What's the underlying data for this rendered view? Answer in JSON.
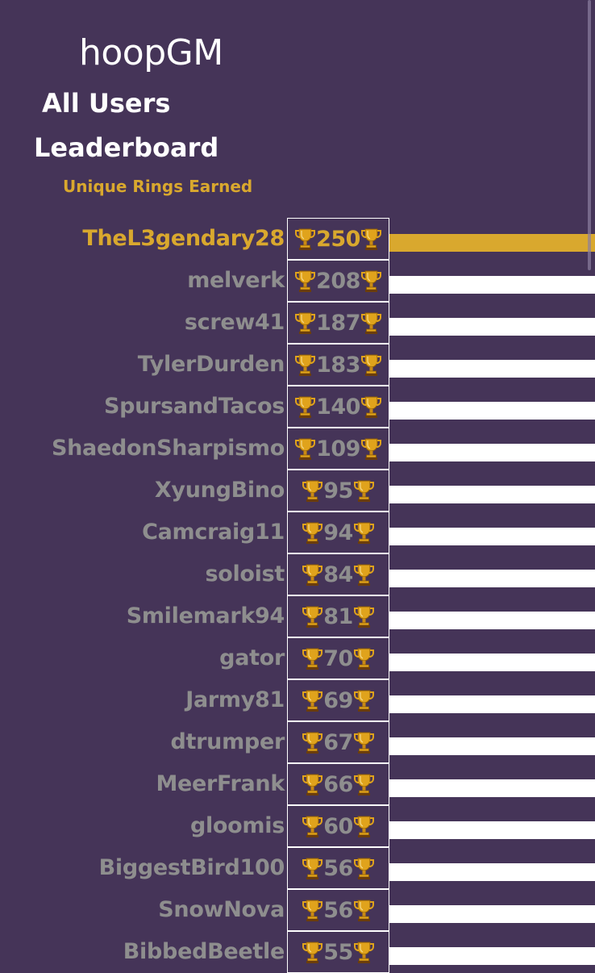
{
  "app": {
    "title": "hoopGM"
  },
  "header": {
    "title": "All Users",
    "subtitle": "Leaderboard",
    "metric": "Unique Rings Earned"
  },
  "colors": {
    "background": "#453458",
    "highlight": "#d9a82e",
    "muted_text": "#8e8e8e",
    "bar": "#ffffff"
  },
  "leaderboard": [
    {
      "name": "TheL3gendary28",
      "rings": "250",
      "bar_fraction": 1.0
    },
    {
      "name": "melverk",
      "rings": "208",
      "bar_fraction": 1.0
    },
    {
      "name": "screw41",
      "rings": "187",
      "bar_fraction": 1.0
    },
    {
      "name": "TylerDurden",
      "rings": "183",
      "bar_fraction": 1.0
    },
    {
      "name": "SpursandTacos",
      "rings": "140",
      "bar_fraction": 1.0
    },
    {
      "name": "ShaedonSharpismo",
      "rings": "109",
      "bar_fraction": 1.0
    },
    {
      "name": "XyungBino",
      "rings": "95",
      "bar_fraction": 1.0
    },
    {
      "name": "Camcraig11",
      "rings": "94",
      "bar_fraction": 1.0
    },
    {
      "name": "soloist",
      "rings": "84",
      "bar_fraction": 1.0
    },
    {
      "name": "Smilemark94",
      "rings": "81",
      "bar_fraction": 1.0
    },
    {
      "name": "gator",
      "rings": "70",
      "bar_fraction": 1.0
    },
    {
      "name": "Jarmy81",
      "rings": "69",
      "bar_fraction": 1.0
    },
    {
      "name": "dtrumper",
      "rings": "67",
      "bar_fraction": 1.0
    },
    {
      "name": "MeerFrank",
      "rings": "66",
      "bar_fraction": 1.0
    },
    {
      "name": "gloomis",
      "rings": "60",
      "bar_fraction": 1.0
    },
    {
      "name": "BiggestBird100",
      "rings": "56",
      "bar_fraction": 1.0
    },
    {
      "name": "SnowNova",
      "rings": "56",
      "bar_fraction": 1.0
    },
    {
      "name": "BibbedBeetle",
      "rings": "55",
      "bar_fraction": 1.0
    }
  ]
}
